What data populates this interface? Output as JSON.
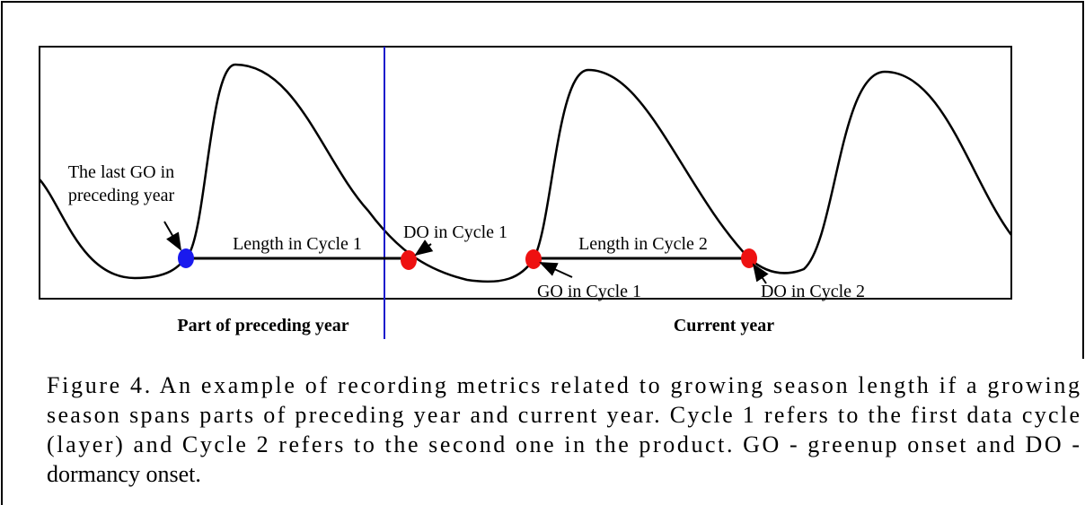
{
  "labels": {
    "last_go": [
      "The last GO in",
      "preceding year"
    ],
    "length1": "Length in Cycle 1",
    "do1": "DO in Cycle 1",
    "length2": "Length in Cycle 2",
    "go1": "GO in Cycle 1",
    "do2": "DO in Cycle 2",
    "preceding": "Part of preceding year",
    "current": "Current year"
  },
  "caption": [
    "Figure 4. An example of recording metrics related to growing season length if a growing",
    "season spans parts of preceding year and current year. Cycle 1 refers to the first data cycle",
    "(layer) and Cycle 2 refers to the second one in the product. GO - greenup onset and DO -",
    "dormancy onset."
  ]
}
